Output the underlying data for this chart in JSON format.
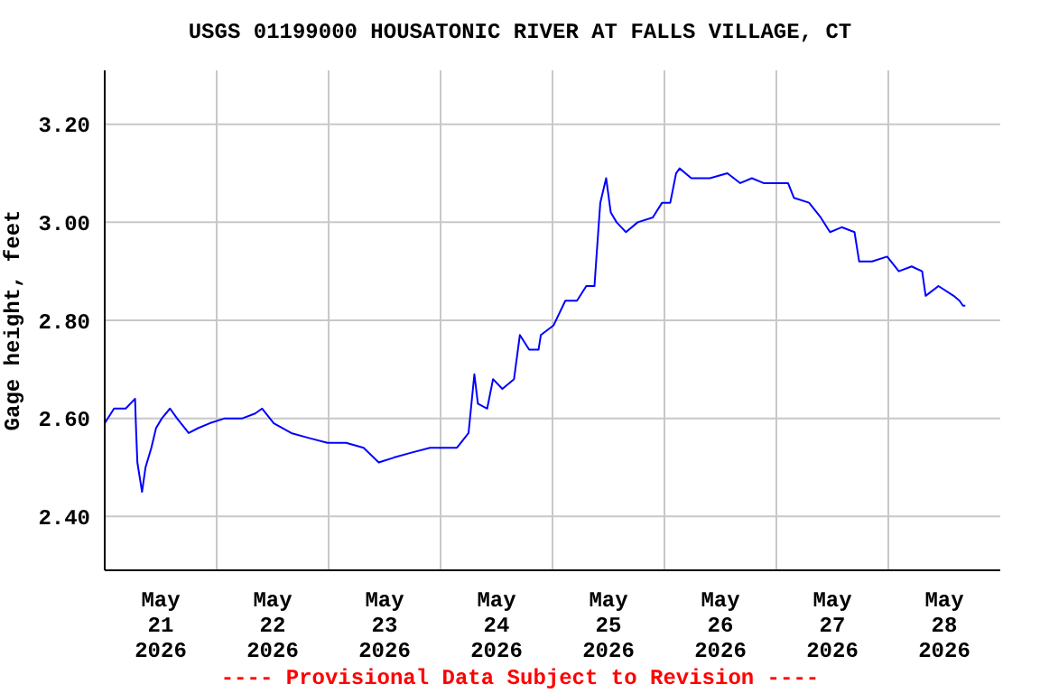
{
  "chart_data": {
    "type": "line",
    "title": "USGS 01199000 HOUSATONIC RIVER AT FALLS VILLAGE, CT",
    "ylabel": "Gage height, feet",
    "annotations": [
      "---- Provisional Data Subject to Revision ----"
    ],
    "xlim": [
      "2026-05-21T00:00",
      "2026-05-29T00:00"
    ],
    "xticks": [
      {
        "value": "2026-05-21T12:00",
        "label": "May\n21\n2026"
      },
      {
        "value": "2026-05-22T12:00",
        "label": "May\n22\n2026"
      },
      {
        "value": "2026-05-23T12:00",
        "label": "May\n23\n2026"
      },
      {
        "value": "2026-05-24T12:00",
        "label": "May\n24\n2026"
      },
      {
        "value": "2026-05-25T12:00",
        "label": "May\n25\n2026"
      },
      {
        "value": "2026-05-26T12:00",
        "label": "May\n26\n2026"
      },
      {
        "value": "2026-05-27T12:00",
        "label": "May\n27\n2026"
      },
      {
        "value": "2026-05-28T12:00",
        "label": "May\n28\n2026"
      },
      {
        "value": "2026-05-22T00:00",
        "label": null
      },
      {
        "value": "2026-05-23T00:00",
        "label": null
      },
      {
        "value": "2026-05-24T00:00",
        "label": null
      },
      {
        "value": "2026-05-25T00:00",
        "label": null
      },
      {
        "value": "2026-05-26T00:00",
        "label": null
      },
      {
        "value": "2026-05-27T00:00",
        "label": null
      },
      {
        "value": "2026-05-28T00:00",
        "label": null
      }
    ],
    "ylim": [
      2.29,
      3.31
    ],
    "yticks": [
      {
        "value": 2.4,
        "label": "2.40"
      },
      {
        "value": 2.6,
        "label": "2.60"
      },
      {
        "value": 2.8,
        "label": "2.80"
      },
      {
        "value": 3.0,
        "label": "3.00"
      },
      {
        "value": 3.2,
        "label": "3.20"
      }
    ],
    "grid": true,
    "x": [
      "2026-05-21T00:00",
      "2026-05-21T02:00",
      "2026-05-21T04:30",
      "2026-05-21T06:30",
      "2026-05-21T06:45",
      "2026-05-21T07:00",
      "2026-05-21T08:00",
      "2026-05-21T08:45",
      "2026-05-21T10:00",
      "2026-05-21T11:00",
      "2026-05-21T12:15",
      "2026-05-21T14:00",
      "2026-05-21T15:30",
      "2026-05-21T18:00",
      "2026-05-21T20:00",
      "2026-05-21T22:30",
      "2026-05-22T01:45",
      "2026-05-22T05:30",
      "2026-05-22T08:15",
      "2026-05-22T09:45",
      "2026-05-22T12:15",
      "2026-05-22T16:00",
      "2026-05-22T19:45",
      "2026-05-22T23:45",
      "2026-05-23T03:45",
      "2026-05-23T07:30",
      "2026-05-23T10:45",
      "2026-05-23T14:00",
      "2026-05-23T17:45",
      "2026-05-23T21:45",
      "2026-05-24T01:30",
      "2026-05-24T03:30",
      "2026-05-24T06:00",
      "2026-05-24T07:15",
      "2026-05-24T08:00",
      "2026-05-24T10:00",
      "2026-05-24T11:15",
      "2026-05-24T13:15",
      "2026-05-24T15:45",
      "2026-05-24T17:00",
      "2026-05-24T19:00",
      "2026-05-24T21:00",
      "2026-05-24T21:30",
      "2026-05-25T00:15",
      "2026-05-25T02:45",
      "2026-05-25T05:15",
      "2026-05-25T07:15",
      "2026-05-25T09:00",
      "2026-05-25T09:30",
      "2026-05-25T10:15",
      "2026-05-25T11:30",
      "2026-05-25T12:30",
      "2026-05-25T13:45",
      "2026-05-25T15:45",
      "2026-05-25T18:15",
      "2026-05-25T21:30",
      "2026-05-25T23:30",
      "2026-05-26T01:15",
      "2026-05-26T02:30",
      "2026-05-26T03:15",
      "2026-05-26T05:45",
      "2026-05-26T09:45",
      "2026-05-26T13:30",
      "2026-05-26T16:15",
      "2026-05-26T18:45",
      "2026-05-26T21:15",
      "2026-05-26T23:45",
      "2026-05-27T02:30",
      "2026-05-27T03:45",
      "2026-05-27T07:00",
      "2026-05-27T09:30",
      "2026-05-27T11:30",
      "2026-05-27T14:00",
      "2026-05-27T16:45",
      "2026-05-27T17:45",
      "2026-05-27T20:30",
      "2026-05-27T23:45",
      "2026-05-28T02:15",
      "2026-05-28T05:00",
      "2026-05-28T07:15",
      "2026-05-28T08:00",
      "2026-05-28T10:45",
      "2026-05-28T14:00",
      "2026-05-28T15:15",
      "2026-05-28T16:00",
      "2026-05-28T16:30"
    ],
    "series": [
      {
        "color": "#0000ff",
        "values": [
          2.59,
          2.62,
          2.62,
          2.64,
          2.57,
          2.51,
          2.45,
          2.5,
          2.54,
          2.58,
          2.6,
          2.62,
          2.6,
          2.57,
          2.58,
          2.59,
          2.6,
          2.6,
          2.61,
          2.62,
          2.59,
          2.57,
          2.56,
          2.55,
          2.55,
          2.54,
          2.51,
          2.52,
          2.53,
          2.54,
          2.54,
          2.54,
          2.57,
          2.69,
          2.63,
          2.62,
          2.68,
          2.66,
          2.68,
          2.77,
          2.74,
          2.74,
          2.77,
          2.79,
          2.84,
          2.84,
          2.87,
          2.87,
          2.94,
          3.04,
          3.09,
          3.02,
          3.0,
          2.98,
          3.0,
          3.01,
          3.04,
          3.04,
          3.1,
          3.11,
          3.09,
          3.09,
          3.1,
          3.08,
          3.09,
          3.08,
          3.08,
          3.08,
          3.05,
          3.04,
          3.01,
          2.98,
          2.99,
          2.98,
          2.92,
          2.92,
          2.93,
          2.9,
          2.91,
          2.9,
          2.85,
          2.87,
          2.85,
          2.84,
          2.83,
          2.83
        ]
      }
    ]
  }
}
